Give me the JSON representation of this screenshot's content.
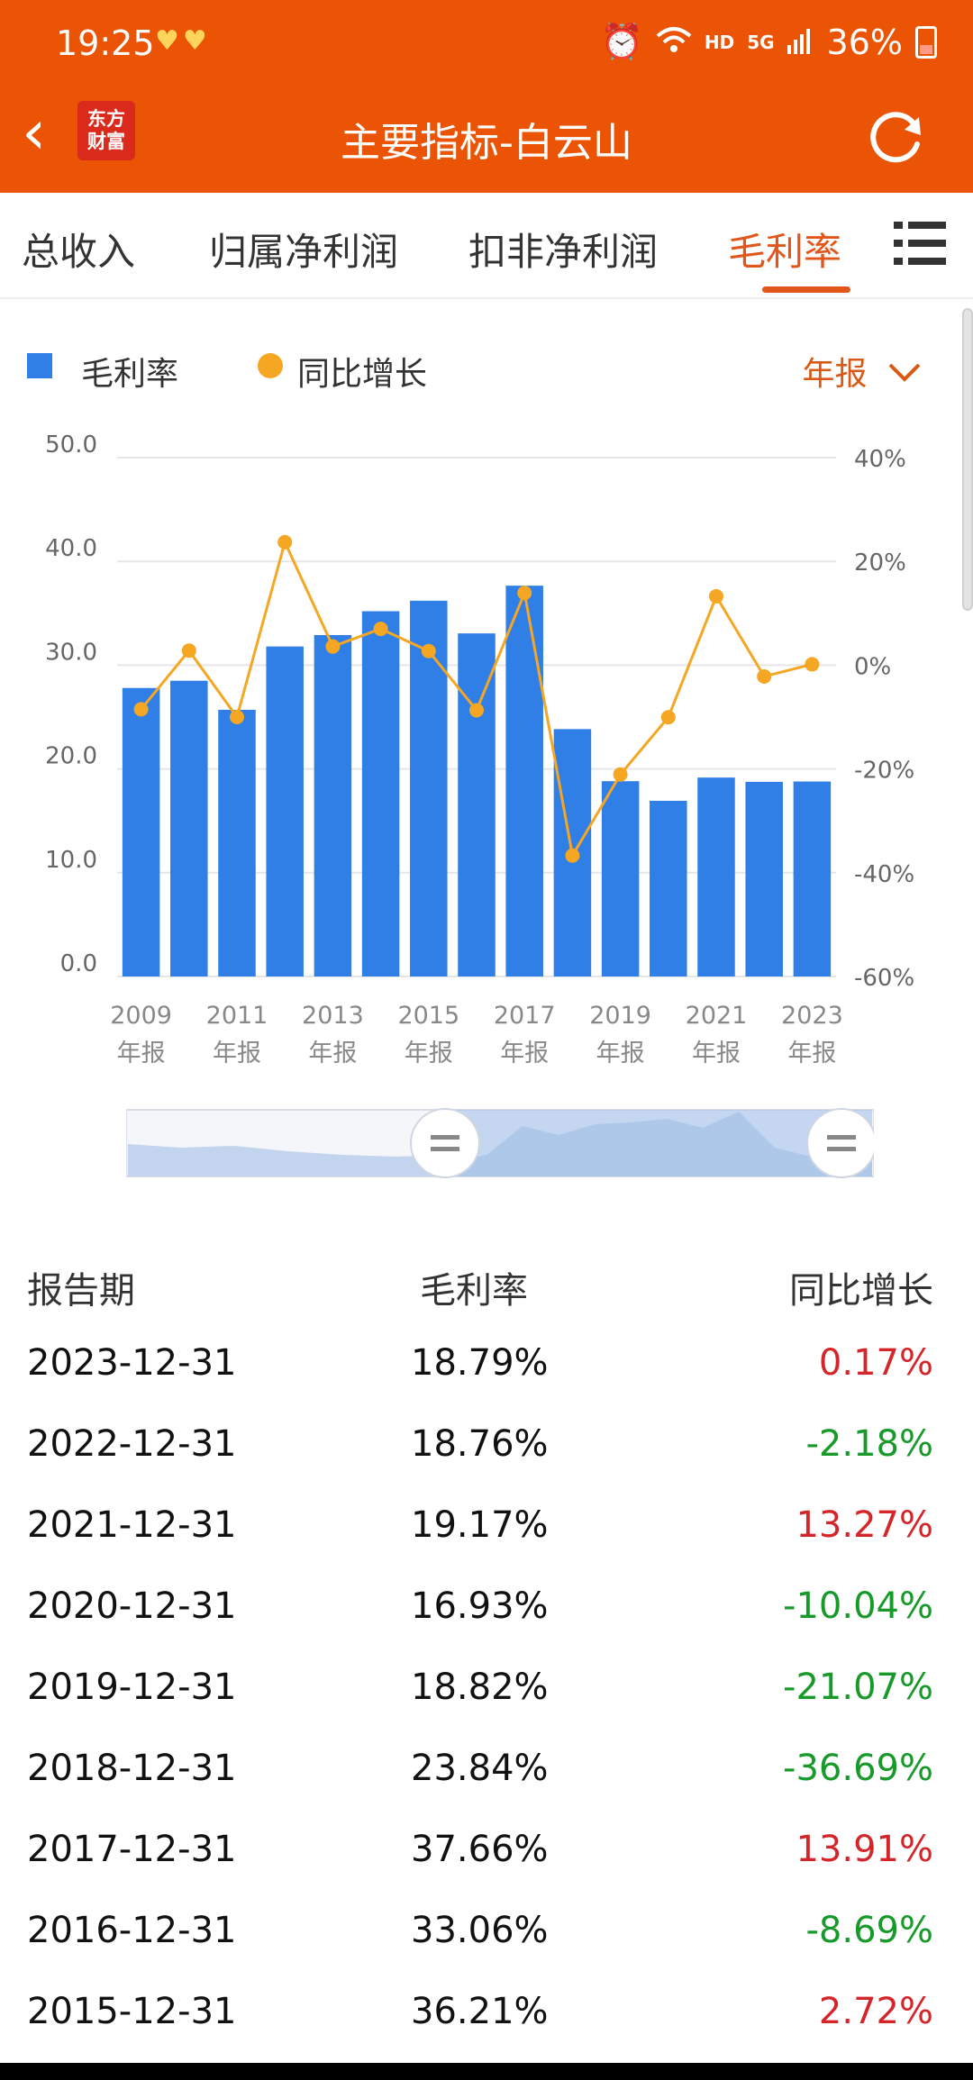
{
  "status_bar": {
    "time": "19:25",
    "hd": "HD",
    "signal": "5G",
    "battery": "36%"
  },
  "header": {
    "title": "主要指标-白云山",
    "logo_line1": "东方",
    "logo_line2": "财富"
  },
  "tabs": [
    {
      "label": "总收入",
      "active": false
    },
    {
      "label": "归属净利润",
      "active": false
    },
    {
      "label": "扣非净利润",
      "active": false
    },
    {
      "label": "毛利率",
      "active": true
    }
  ],
  "legend": {
    "bar_label": "毛利率",
    "line_label": "同比增长",
    "period": "年报"
  },
  "chart_data": {
    "type": "bar",
    "categories": [
      "2009",
      "2010",
      "2011",
      "2012",
      "2013",
      "2014",
      "2015",
      "2016",
      "2017",
      "2018",
      "2019",
      "2020",
      "2021",
      "2022",
      "2023"
    ],
    "tick_labels": [
      {
        "year": "2009",
        "sub": "年报"
      },
      {
        "year": "2011",
        "sub": "年报"
      },
      {
        "year": "2013",
        "sub": "年报"
      },
      {
        "year": "2015",
        "sub": "年报"
      },
      {
        "year": "2017",
        "sub": "年报"
      },
      {
        "year": "2019",
        "sub": "年报"
      },
      {
        "year": "2021",
        "sub": "年报"
      },
      {
        "year": "2023",
        "sub": "年报"
      }
    ],
    "series": [
      {
        "name": "毛利率",
        "type": "bar",
        "axis": "left",
        "values": [
          27.8,
          28.5,
          25.7,
          31.8,
          32.9,
          35.2,
          36.21,
          33.06,
          37.66,
          23.84,
          18.82,
          16.93,
          19.17,
          18.76,
          18.79
        ]
      },
      {
        "name": "同比增长",
        "type": "line",
        "axis": "right",
        "values": [
          -8.5,
          2.8,
          -10.0,
          23.7,
          3.6,
          7.0,
          2.72,
          -8.69,
          13.91,
          -36.69,
          -21.07,
          -10.04,
          13.27,
          -2.18,
          0.17
        ]
      }
    ],
    "y_left": {
      "ticks": [
        "50.0",
        "40.0",
        "30.0",
        "20.0",
        "10.0",
        "0.0"
      ],
      "ylim": [
        0,
        50
      ]
    },
    "y_right": {
      "ticks": [
        "40%",
        "20%",
        "0%",
        "-20%",
        "-40%",
        "-60%"
      ],
      "ylim": [
        -60,
        40
      ]
    },
    "colors": {
      "bar": "#2f7fe6",
      "line": "#f5a623"
    },
    "grid": true
  },
  "table": {
    "headers": [
      "报告期",
      "毛利率",
      "同比增长"
    ],
    "rows": [
      [
        "2023-12-31",
        "18.79%",
        "0.17%"
      ],
      [
        "2022-12-31",
        "18.76%",
        "-2.18%"
      ],
      [
        "2021-12-31",
        "19.17%",
        "13.27%"
      ],
      [
        "2020-12-31",
        "16.93%",
        "-10.04%"
      ],
      [
        "2019-12-31",
        "18.82%",
        "-21.07%"
      ],
      [
        "2018-12-31",
        "23.84%",
        "-36.69%"
      ],
      [
        "2017-12-31",
        "37.66%",
        "13.91%"
      ],
      [
        "2016-12-31",
        "33.06%",
        "-8.69%"
      ],
      [
        "2015-12-31",
        "36.21%",
        "2.72%"
      ]
    ]
  }
}
